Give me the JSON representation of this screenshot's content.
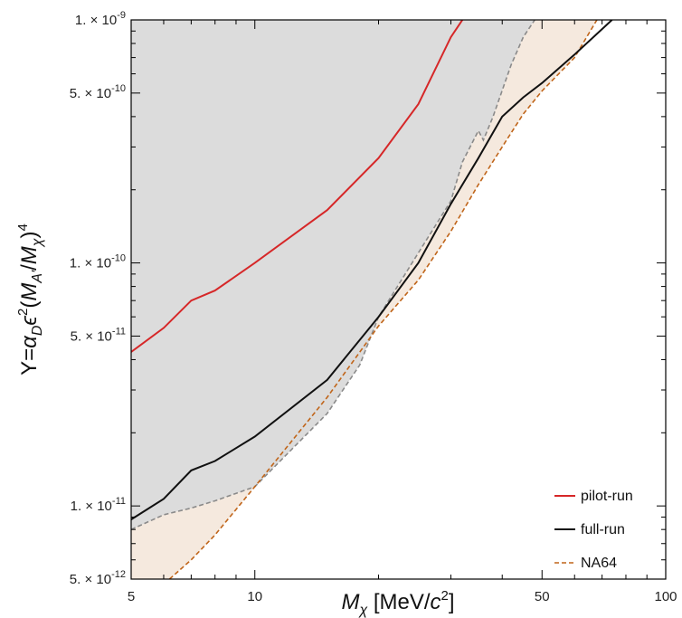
{
  "chart_data": {
    "type": "line",
    "x_scale": "log",
    "y_scale": "log",
    "xlim": [
      5,
      100
    ],
    "ylim": [
      5e-12,
      1e-09
    ],
    "grid": false,
    "legend_placement": "bottom-right",
    "xlabel": {
      "main": "M",
      "sub": "χ",
      "pre": " [MeV/",
      "c": "c",
      "sup": "2",
      "post": "]"
    },
    "ylabel": "Y=α_D ε^2 (M_A'/M_χ)^4",
    "x_ticks": [
      {
        "value": 5,
        "label": "5"
      },
      {
        "value": 10,
        "label": "10"
      },
      {
        "value": 50,
        "label": "50"
      },
      {
        "value": 100,
        "label": "100"
      }
    ],
    "y_ticks": [
      {
        "value": 5e-12,
        "label": "5. × 10",
        "exp": "-12"
      },
      {
        "value": 1e-11,
        "label": "1. × 10",
        "exp": "-11"
      },
      {
        "value": 5e-11,
        "label": "5. × 10",
        "exp": "-11"
      },
      {
        "value": 1e-10,
        "label": "1. × 10",
        "exp": "-10"
      },
      {
        "value": 5e-10,
        "label": "5. × 10",
        "exp": "-10"
      },
      {
        "value": 1e-09,
        "label": "1. × 10",
        "exp": "-9"
      }
    ],
    "colors": {
      "pilot": "#d62728",
      "full": "#111111",
      "na64": "#c0651a",
      "grey_region": "#dcdcdc",
      "grey_border": "#8a8a8a",
      "peach_region": "#f5e9de"
    },
    "series": [
      {
        "name": "pilot-run",
        "style": "solid",
        "points": [
          [
            5,
            4.3e-11
          ],
          [
            6,
            5.4e-11
          ],
          [
            7,
            7e-11
          ],
          [
            8,
            7.7e-11
          ],
          [
            10,
            1e-10
          ],
          [
            15,
            1.65e-10
          ],
          [
            20,
            2.7e-10
          ],
          [
            25,
            4.5e-10
          ],
          [
            30,
            8.5e-10
          ],
          [
            32,
            1e-09
          ]
        ]
      },
      {
        "name": "full-run",
        "style": "solid",
        "points": [
          [
            5,
            8.8e-12
          ],
          [
            6,
            1.07e-11
          ],
          [
            7,
            1.4e-11
          ],
          [
            8,
            1.53e-11
          ],
          [
            10,
            1.93e-11
          ],
          [
            15,
            3.3e-11
          ],
          [
            20,
            6e-11
          ],
          [
            25,
            1e-10
          ],
          [
            30,
            1.75e-10
          ],
          [
            35,
            2.7e-10
          ],
          [
            40,
            4e-10
          ],
          [
            45,
            4.8e-10
          ],
          [
            50,
            5.5e-10
          ],
          [
            60,
            7.2e-10
          ],
          [
            74,
            1e-09
          ]
        ]
      },
      {
        "name": "NA64",
        "style": "dashed",
        "points": [
          [
            6.2,
            5e-12
          ],
          [
            7,
            6e-12
          ],
          [
            8,
            7.6e-12
          ],
          [
            10,
            1.2e-11
          ],
          [
            15,
            2.8e-11
          ],
          [
            20,
            5.5e-11
          ],
          [
            25,
            8.5e-11
          ],
          [
            30,
            1.35e-10
          ],
          [
            35,
            2.1e-10
          ],
          [
            40,
            3e-10
          ],
          [
            45,
            4.1e-10
          ],
          [
            50,
            5.1e-10
          ],
          [
            60,
            7e-10
          ],
          [
            68,
            1e-09
          ]
        ]
      },
      {
        "name": "",
        "style": "dashed-grey-boundary",
        "points": [
          [
            5,
            8e-12
          ],
          [
            6,
            9.2e-12
          ],
          [
            7,
            9.8e-12
          ],
          [
            8,
            1.05e-11
          ],
          [
            10,
            1.2e-11
          ],
          [
            15,
            2.4e-11
          ],
          [
            18,
            3.8e-11
          ],
          [
            20,
            6e-11
          ],
          [
            25,
            1.1e-10
          ],
          [
            30,
            1.8e-10
          ],
          [
            32,
            2.6e-10
          ],
          [
            35,
            3.5e-10
          ],
          [
            36,
            3.2e-10
          ],
          [
            38,
            4e-10
          ],
          [
            42,
            6.5e-10
          ],
          [
            45,
            8.5e-10
          ],
          [
            48,
            1e-09
          ]
        ]
      }
    ]
  },
  "legend": {
    "items": [
      {
        "label": "pilot-run",
        "key": "pilot"
      },
      {
        "label": "full-run",
        "key": "full"
      },
      {
        "label": "NA64",
        "key": "na64"
      }
    ]
  }
}
